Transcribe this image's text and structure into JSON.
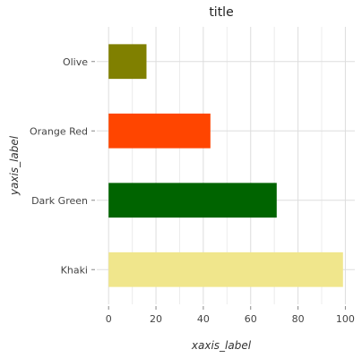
{
  "chart_data": {
    "type": "bar",
    "orientation": "horizontal",
    "title": "title",
    "xlabel": "xaxis_label",
    "ylabel": "yaxis_label",
    "categories": [
      "Khaki",
      "Dark Green",
      "Orange Red",
      "Olive"
    ],
    "values": [
      99,
      71,
      43,
      16
    ],
    "colors": [
      "#f0e68c",
      "#006400",
      "#ff4500",
      "#808000"
    ],
    "xlim": [
      -5,
      104
    ],
    "xticks": [
      0,
      20,
      40,
      60,
      80,
      100
    ],
    "grid": true,
    "legend": "none"
  }
}
